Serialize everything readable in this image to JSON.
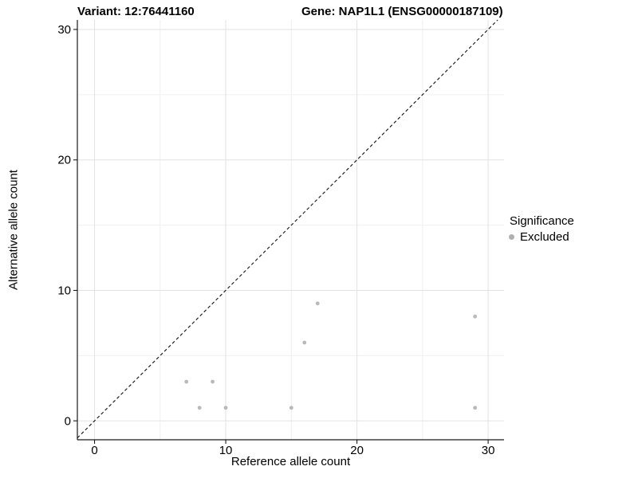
{
  "titles": {
    "variant": "Variant: 12:76441160",
    "gene": "Gene: NAP1L1 (ENSG00000187109)"
  },
  "chart_data": {
    "type": "scatter",
    "xlabel": "Reference allele count",
    "ylabel": "Alternative allele count",
    "xlim": [
      -1.31,
      31.21
    ],
    "ylim": [
      -1.45,
      30.73
    ],
    "x_ticks": [
      0,
      10,
      20,
      30
    ],
    "y_ticks": [
      0,
      10,
      20,
      30
    ],
    "x_minor_ticks": [
      5,
      15,
      25
    ],
    "y_minor_ticks": [
      5,
      15,
      25
    ],
    "grid": "major+minor",
    "identity_line": {
      "slope": 1,
      "intercept": 0,
      "style": "dashed"
    },
    "series": [
      {
        "name": "Excluded",
        "points": [
          {
            "x": 7,
            "y": 3
          },
          {
            "x": 8,
            "y": 1
          },
          {
            "x": 9,
            "y": 3
          },
          {
            "x": 10,
            "y": 1
          },
          {
            "x": 15,
            "y": 1
          },
          {
            "x": 16,
            "y": 6
          },
          {
            "x": 17,
            "y": 9
          },
          {
            "x": 29,
            "y": 1
          },
          {
            "x": 29,
            "y": 8
          }
        ]
      }
    ],
    "legend": {
      "title": "Significance",
      "position": "right",
      "items": [
        {
          "label": "Excluded"
        }
      ]
    }
  },
  "colors": {
    "point": "#b9b9b9",
    "legend_dot": "#b0b0b0",
    "grid_major": "#e2e2e2",
    "grid_minor": "#f0f0f0",
    "axis_line": "#1a1a1a",
    "tick_mark": "#1a1a1a",
    "tick_text": "#000000",
    "identity_line": "#111111",
    "background": "#ffffff"
  }
}
